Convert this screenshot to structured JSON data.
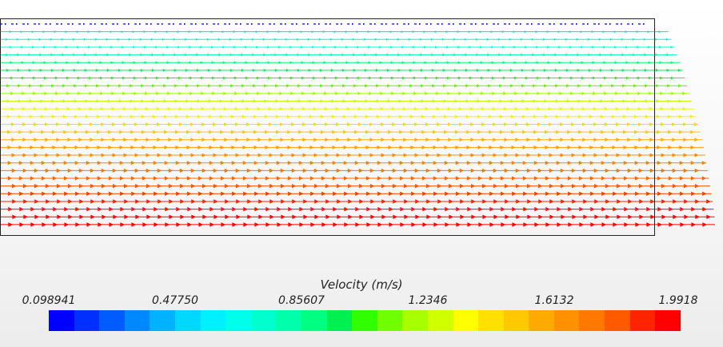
{
  "chart_data": {
    "type": "vector_field",
    "quantity": "Velocity",
    "units": "m/s",
    "legend_title": "Velocity (m/s)",
    "colorbar_range": [
      0.098941,
      1.9918
    ],
    "colorbar_ticks": [
      "0.098941",
      "0.47750",
      "0.85607",
      "1.2346",
      "1.6132",
      "1.9918"
    ],
    "colorbar_tick_values": [
      0.098941,
      0.4775,
      0.85607,
      1.2346,
      1.6132,
      1.9918
    ],
    "colormap": [
      "#0000ff",
      "#0030ff",
      "#005cff",
      "#0088ff",
      "#00b2ff",
      "#00d8ff",
      "#00f0ff",
      "#00ffea",
      "#00ffcc",
      "#00ffaa",
      "#00ff80",
      "#00f050",
      "#30ff00",
      "#70ff00",
      "#a8ff00",
      "#d0ff00",
      "#ffff00",
      "#ffe000",
      "#ffc800",
      "#ffaa00",
      "#ff9000",
      "#ff7800",
      "#ff5a00",
      "#ff2400",
      "#ff0000"
    ],
    "layers": [
      {
        "velocity": 0.1
      },
      {
        "velocity": 0.5
      },
      {
        "velocity": 0.6
      },
      {
        "velocity": 0.7
      },
      {
        "velocity": 0.78
      },
      {
        "velocity": 0.88
      },
      {
        "velocity": 0.96
      },
      {
        "velocity": 1.03
      },
      {
        "velocity": 1.1
      },
      {
        "velocity": 1.18
      },
      {
        "velocity": 1.25
      },
      {
        "velocity": 1.32
      },
      {
        "velocity": 1.4
      },
      {
        "velocity": 1.46
      },
      {
        "velocity": 1.52
      },
      {
        "velocity": 1.58
      },
      {
        "velocity": 1.63
      },
      {
        "velocity": 1.68
      },
      {
        "velocity": 1.72
      },
      {
        "velocity": 1.76
      },
      {
        "velocity": 1.8
      },
      {
        "velocity": 1.84
      },
      {
        "velocity": 1.88
      },
      {
        "velocity": 1.92
      },
      {
        "velocity": 1.95
      },
      {
        "velocity": 1.98
      },
      {
        "velocity": 1.99
      }
    ]
  }
}
